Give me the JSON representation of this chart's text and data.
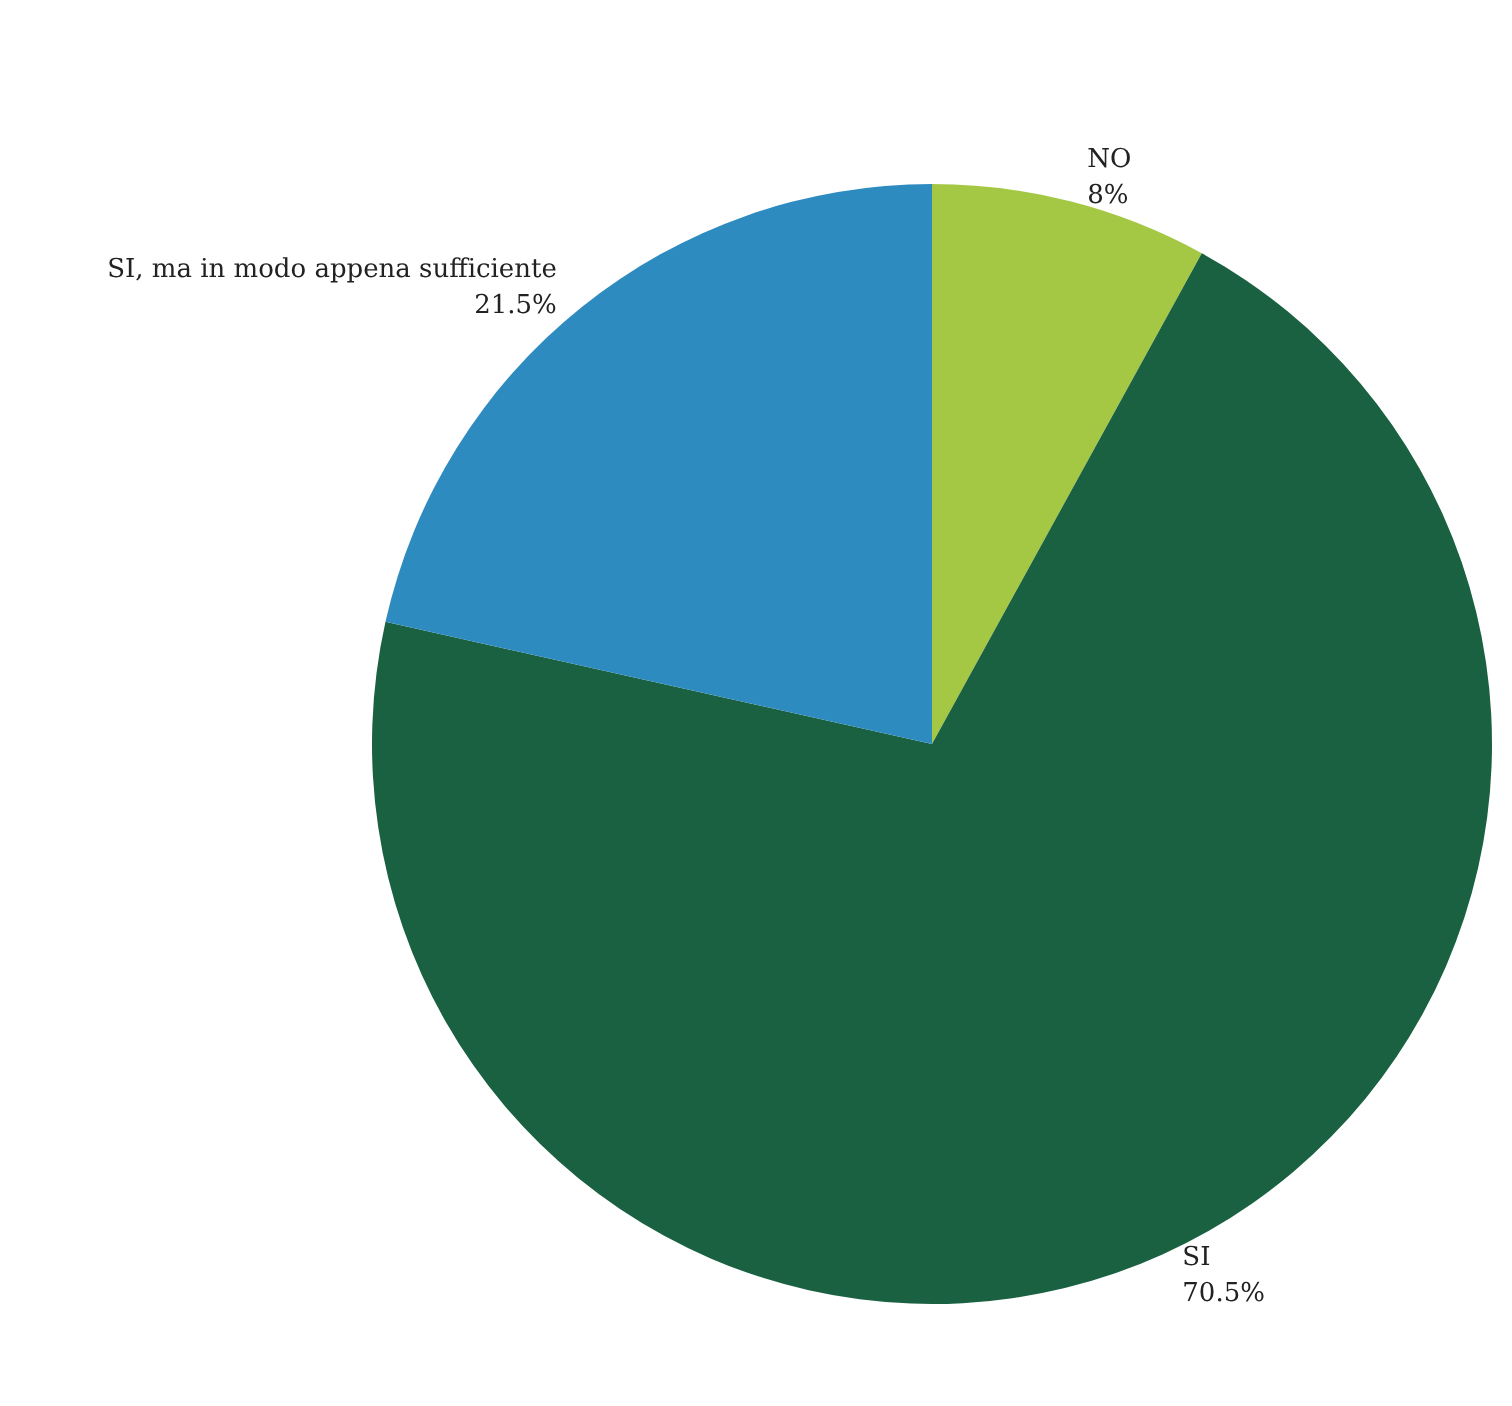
{
  "chart_data": {
    "type": "pie",
    "categories": [
      "NO",
      "SI",
      "SI, ma in modo appena sufficiente"
    ],
    "values": [
      8,
      70.5,
      21.5
    ],
    "colors": [
      "#a5c844",
      "#1a6142",
      "#2e8bc0"
    ],
    "value_labels": [
      "8%",
      "70.5%",
      "21.5%"
    ],
    "legend": false
  }
}
